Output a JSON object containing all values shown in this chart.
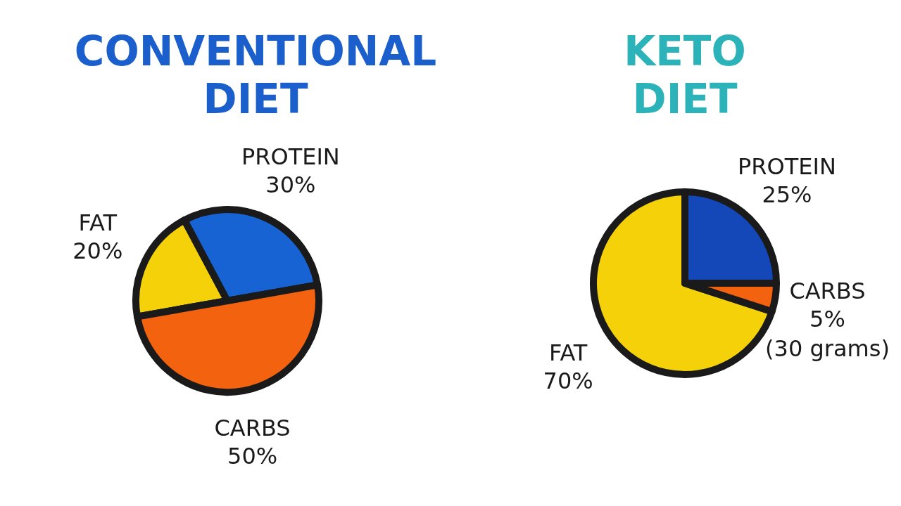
{
  "chart_data": [
    {
      "type": "pie",
      "title": "CONVENTIONAL DIET",
      "categories": [
        "FAT",
        "PROTEIN",
        "CARBS"
      ],
      "values": [
        20,
        30,
        50
      ],
      "value_labels": [
        "20%",
        "30%",
        "50%"
      ],
      "colors": [
        "#f5d10a",
        "#1763d3",
        "#f2620f"
      ]
    },
    {
      "type": "pie",
      "title": "KETO DIET",
      "categories": [
        "FAT",
        "PROTEIN",
        "CARBS"
      ],
      "values": [
        70,
        25,
        5
      ],
      "value_labels": [
        "70%",
        "25%",
        "5%"
      ],
      "colors": [
        "#f5d10a",
        "#1448b8",
        "#f2620f"
      ],
      "annotations": [
        "(30 grams)"
      ]
    }
  ]
}
